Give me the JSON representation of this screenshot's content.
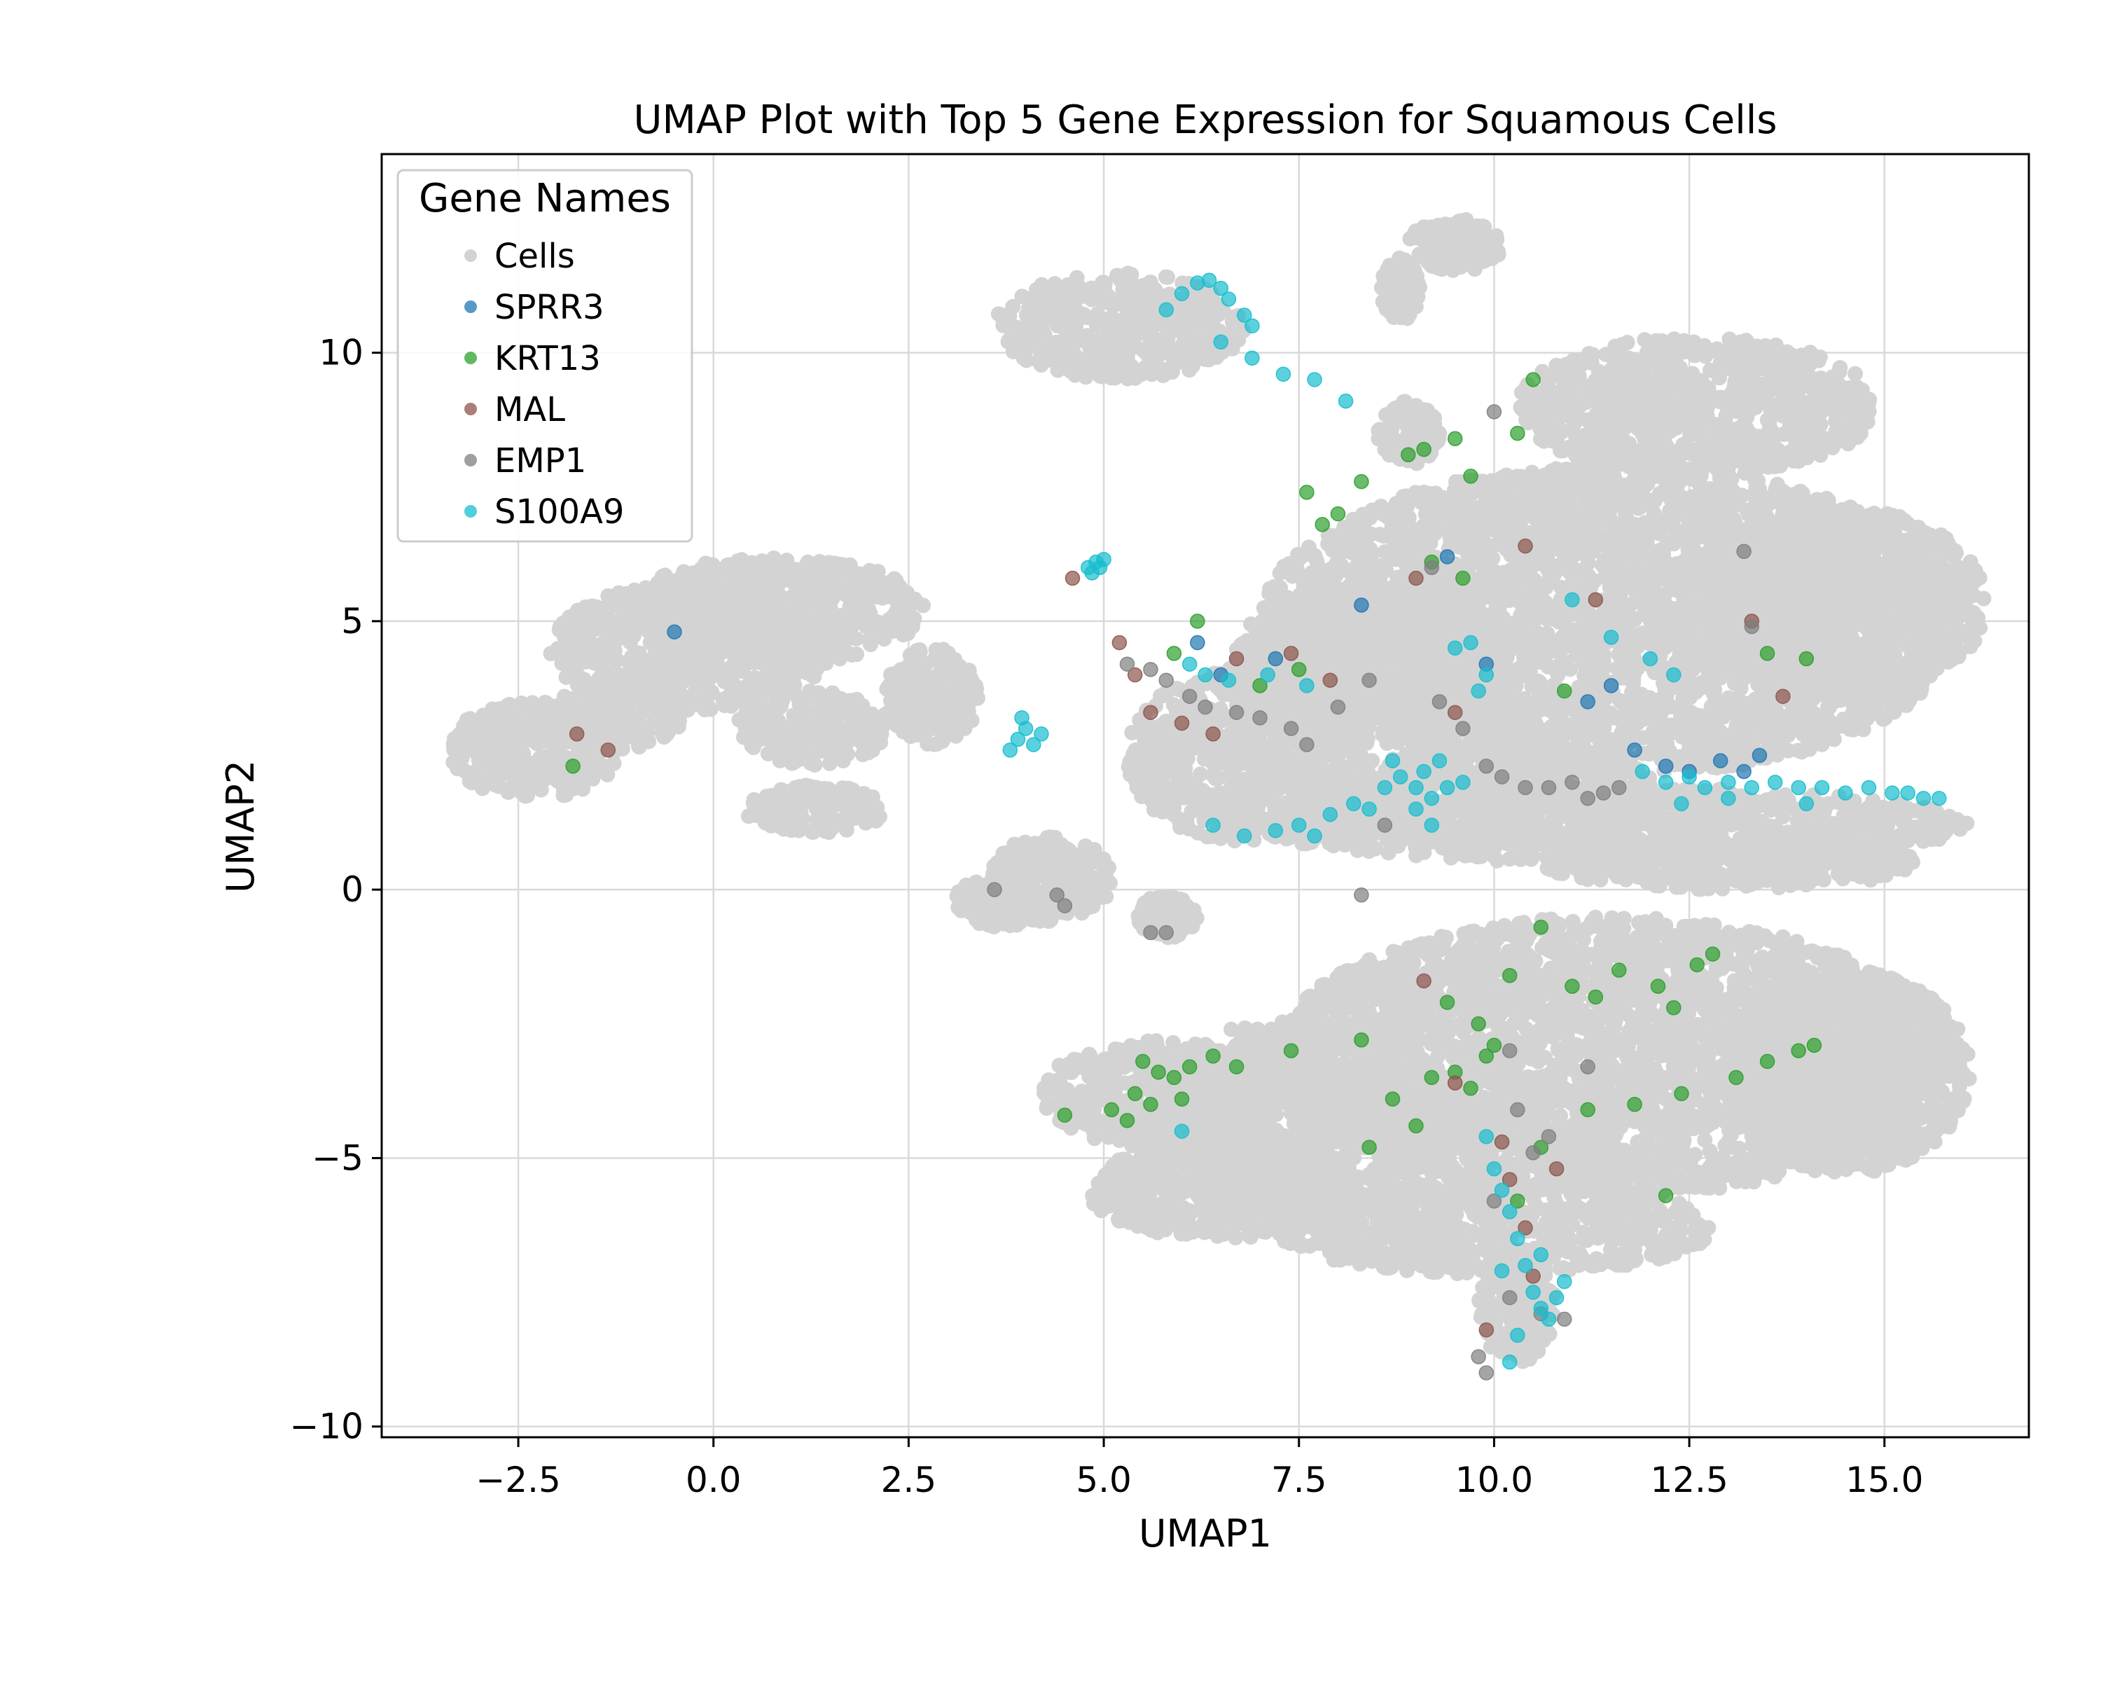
{
  "chart_data": {
    "type": "scatter",
    "title": "UMAP Plot with Top 5 Gene Expression for Squamous Cells",
    "xlabel": "UMAP1",
    "ylabel": "UMAP2",
    "xlim": [
      -4.25,
      16.85
    ],
    "ylim": [
      -10.2,
      13.7
    ],
    "x_ticks": [
      -2.5,
      0.0,
      2.5,
      5.0,
      7.5,
      10.0,
      12.5,
      15.0
    ],
    "x_tick_labels": [
      "−2.5",
      "0.0",
      "2.5",
      "5.0",
      "7.5",
      "10.0",
      "12.5",
      "15.0"
    ],
    "y_ticks": [
      -10,
      -5,
      0,
      5,
      10
    ],
    "y_tick_labels": [
      "−10",
      "−5",
      "0",
      "5",
      "10"
    ],
    "grid": true,
    "legend": {
      "title": "Gene Names",
      "position": "top-left",
      "entries": [
        "Cells",
        "SPRR3",
        "KRT13",
        "MAL",
        "EMP1",
        "S100A9"
      ]
    },
    "background_regions": [
      {
        "name": "Cells",
        "shape": "ellipse",
        "cx": 5.2,
        "cy": 10.5,
        "rx": 1.6,
        "ry": 1.0
      },
      {
        "name": "Cells",
        "shape": "ellipse",
        "cx": 9.5,
        "cy": 12.0,
        "rx": 0.6,
        "ry": 0.5
      },
      {
        "name": "Cells",
        "shape": "ellipse",
        "cx": 8.8,
        "cy": 11.2,
        "rx": 0.25,
        "ry": 0.6
      },
      {
        "name": "Cells",
        "shape": "ellipse",
        "cx": 8.9,
        "cy": 8.5,
        "rx": 0.4,
        "ry": 0.6
      },
      {
        "name": "Cells",
        "shape": "ellipse",
        "cx": 12.6,
        "cy": 9.0,
        "rx": 2.3,
        "ry": 1.3
      },
      {
        "name": "Cells",
        "shape": "ellipse",
        "cx": 11.5,
        "cy": 5.0,
        "rx": 4.5,
        "ry": 2.9
      },
      {
        "name": "Cells",
        "shape": "ellipse",
        "cx": 14.5,
        "cy": 5.3,
        "rx": 1.8,
        "ry": 1.8
      },
      {
        "name": "Cells",
        "shape": "ellipse",
        "cx": 8.4,
        "cy": 4.2,
        "rx": 1.8,
        "ry": 1.5
      },
      {
        "name": "Cells",
        "shape": "ellipse",
        "cx": 6.8,
        "cy": 2.5,
        "rx": 1.5,
        "ry": 1.6
      },
      {
        "name": "Cells",
        "shape": "ellipse",
        "cx": 11.5,
        "cy": 1.2,
        "rx": 4.6,
        "ry": 0.7
      },
      {
        "name": "Cells",
        "shape": "ellipse",
        "cx": 10.0,
        "cy": 1.7,
        "rx": 2.2,
        "ry": 1.0
      },
      {
        "name": "Cells",
        "shape": "ellipse",
        "cx": 13.0,
        "cy": 0.5,
        "rx": 2.4,
        "ry": 0.5
      },
      {
        "name": "Cells",
        "shape": "ellipse",
        "cx": 0.8,
        "cy": 5.2,
        "rx": 1.9,
        "ry": 1.0
      },
      {
        "name": "Cells",
        "shape": "ellipse",
        "cx": -0.3,
        "cy": 4.5,
        "rx": 1.8,
        "ry": 1.2
      },
      {
        "name": "Cells",
        "shape": "ellipse",
        "cx": -2.3,
        "cy": 2.6,
        "rx": 1.1,
        "ry": 0.9
      },
      {
        "name": "Cells",
        "shape": "ellipse",
        "cx": -1.3,
        "cy": 3.2,
        "rx": 0.9,
        "ry": 0.6
      },
      {
        "name": "Cells",
        "shape": "ellipse",
        "cx": 1.3,
        "cy": 3.0,
        "rx": 1.0,
        "ry": 0.7
      },
      {
        "name": "Cells",
        "shape": "ellipse",
        "cx": 2.8,
        "cy": 3.6,
        "rx": 0.6,
        "ry": 0.9
      },
      {
        "name": "Cells",
        "shape": "ellipse",
        "cx": 1.3,
        "cy": 1.5,
        "rx": 0.9,
        "ry": 0.45
      },
      {
        "name": "Cells",
        "shape": "ellipse",
        "cx": 4.3,
        "cy": 0.2,
        "rx": 0.8,
        "ry": 0.8
      },
      {
        "name": "Cells",
        "shape": "ellipse",
        "cx": 3.7,
        "cy": -0.2,
        "rx": 0.6,
        "ry": 0.5
      },
      {
        "name": "Cells",
        "shape": "ellipse",
        "cx": 5.8,
        "cy": -0.5,
        "rx": 0.4,
        "ry": 0.4
      },
      {
        "name": "Cells",
        "shape": "ellipse",
        "cx": 11.5,
        "cy": -3.1,
        "rx": 4.3,
        "ry": 2.6
      },
      {
        "name": "Cells",
        "shape": "ellipse",
        "cx": 14.5,
        "cy": -3.4,
        "rx": 1.6,
        "ry": 1.9
      },
      {
        "name": "Cells",
        "shape": "ellipse",
        "cx": 7.5,
        "cy": -4.2,
        "rx": 2.0,
        "ry": 1.8
      },
      {
        "name": "Cells",
        "shape": "ellipse",
        "cx": 5.7,
        "cy": -3.8,
        "rx": 1.5,
        "ry": 1.0
      },
      {
        "name": "Cells",
        "shape": "ellipse",
        "cx": 6.5,
        "cy": -5.6,
        "rx": 1.7,
        "ry": 0.9
      },
      {
        "name": "Cells",
        "shape": "ellipse",
        "cx": 10.0,
        "cy": -6.3,
        "rx": 2.8,
        "ry": 0.9
      },
      {
        "name": "Cells",
        "shape": "ellipse",
        "cx": 10.3,
        "cy": -7.8,
        "rx": 0.5,
        "ry": 1.0
      }
    ],
    "series": [
      {
        "name": "SPRR3",
        "color": "#1f77b4",
        "points": [
          [
            -0.5,
            4.8
          ],
          [
            8.3,
            5.3
          ],
          [
            9.4,
            6.2
          ],
          [
            11.2,
            3.5
          ],
          [
            11.5,
            3.8
          ],
          [
            11.8,
            2.6
          ],
          [
            12.2,
            2.3
          ],
          [
            12.5,
            2.2
          ],
          [
            12.9,
            2.4
          ],
          [
            13.2,
            2.2
          ],
          [
            13.4,
            2.5
          ],
          [
            6.2,
            4.6
          ],
          [
            6.5,
            4.0
          ],
          [
            7.2,
            4.3
          ],
          [
            9.9,
            4.2
          ]
        ]
      },
      {
        "name": "KRT13",
        "color": "#2ca02c",
        "points": [
          [
            -1.8,
            2.3
          ],
          [
            7.6,
            7.4
          ],
          [
            8.0,
            7.0
          ],
          [
            8.3,
            7.6
          ],
          [
            8.9,
            8.1
          ],
          [
            9.1,
            8.2
          ],
          [
            9.5,
            8.4
          ],
          [
            9.7,
            7.7
          ],
          [
            10.3,
            8.5
          ],
          [
            10.5,
            9.5
          ],
          [
            7.8,
            6.8
          ],
          [
            9.2,
            6.1
          ],
          [
            9.6,
            5.8
          ],
          [
            10.9,
            3.7
          ],
          [
            13.5,
            4.4
          ],
          [
            14.0,
            4.3
          ],
          [
            6.2,
            5.0
          ],
          [
            5.9,
            4.4
          ],
          [
            7.0,
            3.8
          ],
          [
            7.5,
            4.1
          ],
          [
            5.5,
            -3.2
          ],
          [
            5.7,
            -3.4
          ],
          [
            5.4,
            -3.8
          ],
          [
            5.9,
            -3.5
          ],
          [
            6.1,
            -3.3
          ],
          [
            6.4,
            -3.1
          ],
          [
            6.7,
            -3.3
          ],
          [
            5.1,
            -4.1
          ],
          [
            5.3,
            -4.3
          ],
          [
            4.5,
            -4.2
          ],
          [
            5.6,
            -4.0
          ],
          [
            6.0,
            -3.9
          ],
          [
            9.2,
            -3.5
          ],
          [
            9.5,
            -3.4
          ],
          [
            9.7,
            -3.7
          ],
          [
            9.9,
            -3.1
          ],
          [
            10.0,
            -2.9
          ],
          [
            9.4,
            -2.1
          ],
          [
            9.8,
            -2.5
          ],
          [
            10.2,
            -1.6
          ],
          [
            10.6,
            -0.7
          ],
          [
            11.0,
            -1.8
          ],
          [
            11.3,
            -2.0
          ],
          [
            11.6,
            -1.5
          ],
          [
            12.1,
            -1.8
          ],
          [
            12.3,
            -2.2
          ],
          [
            12.6,
            -1.4
          ],
          [
            12.8,
            -1.2
          ],
          [
            13.1,
            -3.5
          ],
          [
            13.5,
            -3.2
          ],
          [
            13.9,
            -3.0
          ],
          [
            14.1,
            -2.9
          ],
          [
            12.4,
            -3.8
          ],
          [
            11.8,
            -4.0
          ],
          [
            11.2,
            -4.1
          ],
          [
            10.6,
            -4.8
          ],
          [
            8.4,
            -4.8
          ],
          [
            8.7,
            -3.9
          ],
          [
            9.0,
            -4.4
          ],
          [
            10.3,
            -5.8
          ],
          [
            12.2,
            -5.7
          ],
          [
            8.3,
            -2.8
          ],
          [
            7.4,
            -3.0
          ]
        ]
      },
      {
        "name": "MAL",
        "color": "#8c564b",
        "points": [
          [
            -1.75,
            2.9
          ],
          [
            -1.35,
            2.6
          ],
          [
            4.6,
            5.8
          ],
          [
            5.2,
            4.6
          ],
          [
            5.4,
            4.0
          ],
          [
            5.6,
            3.3
          ],
          [
            6.0,
            3.1
          ],
          [
            6.4,
            2.9
          ],
          [
            6.7,
            4.3
          ],
          [
            7.4,
            4.4
          ],
          [
            7.9,
            3.9
          ],
          [
            9.0,
            5.8
          ],
          [
            9.5,
            3.3
          ],
          [
            10.4,
            6.4
          ],
          [
            11.3,
            5.4
          ],
          [
            13.3,
            5.0
          ],
          [
            13.7,
            3.6
          ],
          [
            9.1,
            -1.7
          ],
          [
            9.5,
            -3.6
          ],
          [
            10.1,
            -4.7
          ],
          [
            10.2,
            -5.4
          ],
          [
            10.4,
            -6.3
          ],
          [
            10.5,
            -7.2
          ],
          [
            9.9,
            -8.2
          ],
          [
            10.8,
            -5.2
          ]
        ]
      },
      {
        "name": "EMP1",
        "color": "#7f7f7f",
        "points": [
          [
            3.6,
            0.0
          ],
          [
            4.4,
            -0.1
          ],
          [
            4.5,
            -0.3
          ],
          [
            5.6,
            -0.8
          ],
          [
            5.8,
            -0.8
          ],
          [
            5.3,
            4.2
          ],
          [
            5.6,
            4.1
          ],
          [
            5.8,
            3.9
          ],
          [
            6.1,
            3.6
          ],
          [
            6.3,
            3.4
          ],
          [
            6.7,
            3.3
          ],
          [
            7.0,
            3.2
          ],
          [
            7.4,
            3.0
          ],
          [
            7.6,
            2.7
          ],
          [
            8.0,
            3.4
          ],
          [
            8.4,
            3.9
          ],
          [
            9.3,
            3.5
          ],
          [
            9.6,
            3.0
          ],
          [
            9.9,
            2.3
          ],
          [
            10.1,
            2.1
          ],
          [
            10.4,
            1.9
          ],
          [
            10.7,
            1.9
          ],
          [
            11.0,
            2.0
          ],
          [
            11.2,
            1.7
          ],
          [
            11.4,
            1.8
          ],
          [
            11.6,
            1.9
          ],
          [
            9.2,
            6.0
          ],
          [
            10.0,
            8.9
          ],
          [
            13.2,
            6.3
          ],
          [
            13.3,
            4.9
          ],
          [
            10.2,
            -3.0
          ],
          [
            10.3,
            -4.1
          ],
          [
            10.5,
            -4.9
          ],
          [
            10.0,
            -5.8
          ],
          [
            10.2,
            -7.6
          ],
          [
            9.8,
            -8.7
          ],
          [
            9.9,
            -9.0
          ],
          [
            10.6,
            -7.9
          ],
          [
            10.9,
            -8.0
          ],
          [
            10.7,
            -4.6
          ],
          [
            11.2,
            -3.3
          ],
          [
            8.3,
            -0.1
          ],
          [
            8.6,
            1.2
          ]
        ]
      },
      {
        "name": "S100A9",
        "color": "#17becf",
        "points": [
          [
            3.8,
            2.6
          ],
          [
            3.9,
            2.8
          ],
          [
            4.0,
            3.0
          ],
          [
            4.1,
            2.7
          ],
          [
            4.2,
            2.9
          ],
          [
            3.95,
            3.2
          ],
          [
            4.8,
            6.0
          ],
          [
            4.9,
            6.1
          ],
          [
            4.85,
            5.9
          ],
          [
            4.95,
            6.0
          ],
          [
            5.0,
            6.15
          ],
          [
            5.8,
            10.8
          ],
          [
            6.0,
            11.1
          ],
          [
            6.2,
            11.3
          ],
          [
            6.35,
            11.35
          ],
          [
            6.5,
            11.2
          ],
          [
            6.6,
            11.0
          ],
          [
            6.8,
            10.7
          ],
          [
            6.9,
            10.5
          ],
          [
            6.5,
            10.2
          ],
          [
            6.9,
            9.9
          ],
          [
            7.3,
            9.6
          ],
          [
            7.7,
            9.5
          ],
          [
            8.1,
            9.1
          ],
          [
            6.1,
            4.2
          ],
          [
            6.3,
            4.0
          ],
          [
            6.6,
            3.9
          ],
          [
            7.1,
            4.0
          ],
          [
            7.6,
            3.8
          ],
          [
            6.4,
            1.2
          ],
          [
            6.8,
            1.0
          ],
          [
            7.2,
            1.1
          ],
          [
            7.5,
            1.2
          ],
          [
            7.7,
            1.0
          ],
          [
            7.9,
            1.4
          ],
          [
            8.2,
            1.6
          ],
          [
            8.4,
            1.5
          ],
          [
            8.6,
            1.9
          ],
          [
            8.8,
            2.1
          ],
          [
            9.0,
            1.9
          ],
          [
            9.2,
            1.7
          ],
          [
            9.4,
            1.9
          ],
          [
            9.6,
            2.0
          ],
          [
            8.7,
            2.4
          ],
          [
            9.1,
            2.2
          ],
          [
            9.3,
            2.4
          ],
          [
            9.0,
            1.5
          ],
          [
            9.2,
            1.2
          ],
          [
            9.5,
            4.5
          ],
          [
            9.7,
            4.6
          ],
          [
            9.9,
            4.0
          ],
          [
            9.8,
            3.7
          ],
          [
            11.0,
            5.4
          ],
          [
            11.5,
            4.7
          ],
          [
            12.0,
            4.3
          ],
          [
            12.3,
            4.0
          ],
          [
            11.9,
            2.2
          ],
          [
            12.2,
            2.0
          ],
          [
            12.5,
            2.1
          ],
          [
            12.7,
            1.9
          ],
          [
            13.0,
            2.0
          ],
          [
            13.3,
            1.9
          ],
          [
            13.6,
            2.0
          ],
          [
            13.9,
            1.9
          ],
          [
            14.2,
            1.9
          ],
          [
            14.5,
            1.8
          ],
          [
            14.8,
            1.9
          ],
          [
            15.1,
            1.8
          ],
          [
            15.3,
            1.8
          ],
          [
            15.5,
            1.7
          ],
          [
            15.7,
            1.7
          ],
          [
            12.4,
            1.6
          ],
          [
            13.0,
            1.7
          ],
          [
            14.0,
            1.6
          ],
          [
            9.9,
            -4.6
          ],
          [
            10.0,
            -5.2
          ],
          [
            10.1,
            -5.6
          ],
          [
            10.2,
            -6.0
          ],
          [
            10.3,
            -6.5
          ],
          [
            10.4,
            -7.0
          ],
          [
            10.5,
            -7.5
          ],
          [
            10.6,
            -7.8
          ],
          [
            10.7,
            -8.0
          ],
          [
            10.8,
            -7.6
          ],
          [
            10.9,
            -7.3
          ],
          [
            10.3,
            -8.3
          ],
          [
            10.2,
            -8.8
          ],
          [
            10.1,
            -7.1
          ],
          [
            10.6,
            -6.8
          ],
          [
            6.0,
            -4.5
          ]
        ]
      }
    ]
  }
}
